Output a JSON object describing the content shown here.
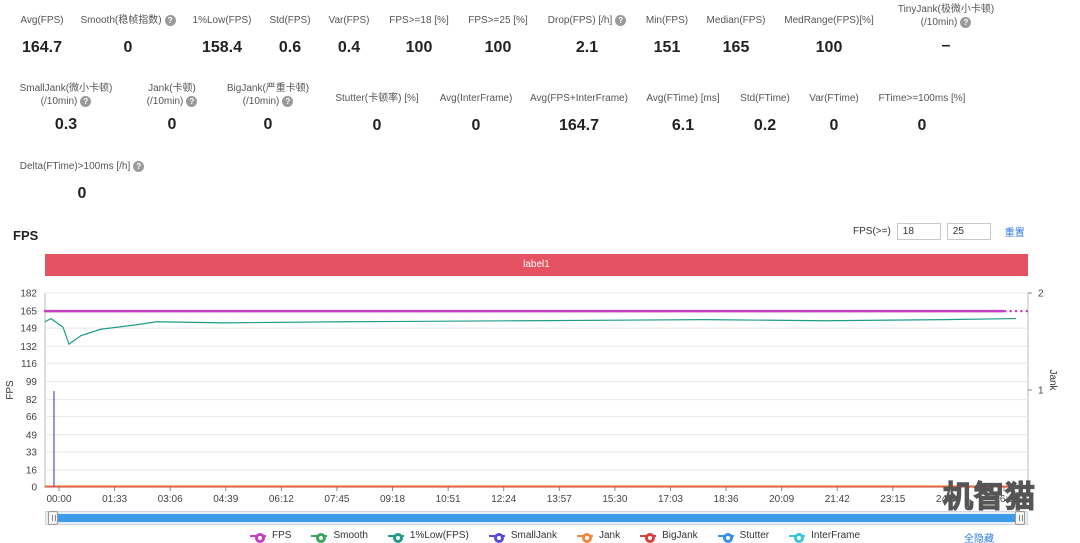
{
  "metrics": [
    {
      "label": "Avg(FPS)",
      "value": "164.7"
    },
    {
      "label": "Smooth(稳帧指数)",
      "value": "0",
      "help": true
    },
    {
      "label": "1%Low(FPS)",
      "value": "158.4"
    },
    {
      "label": "Std(FPS)",
      "value": "0.6"
    },
    {
      "label": "Var(FPS)",
      "value": "0.4"
    },
    {
      "label": "FPS>=18 [%]",
      "value": "100"
    },
    {
      "label": "FPS>=25 [%]",
      "value": "100"
    },
    {
      "label": "Drop(FPS) [/h]",
      "value": "2.1",
      "help": true
    },
    {
      "label": "Min(FPS)",
      "value": "151"
    },
    {
      "label": "Median(FPS)",
      "value": "165"
    },
    {
      "label": "MedRange(FPS)[%]",
      "value": "100"
    },
    {
      "label": "TinyJank(极微小卡顿)",
      "label2": "(/10min)",
      "value": "–",
      "help": true
    },
    {
      "label": "SmallJank(微小卡顿)",
      "label2": "(/10min)",
      "value": "0.3",
      "help": true
    },
    {
      "label": "Jank(卡顿)",
      "label2": "(/10min)",
      "value": "0",
      "help": true
    },
    {
      "label": "BigJank(严重卡顿)",
      "label2": "(/10min)",
      "value": "0",
      "help": true
    },
    {
      "label": "Stutter(卡顿率) [%]",
      "value": "0"
    },
    {
      "label": "Avg(InterFrame)",
      "value": "0"
    },
    {
      "label": "Avg(FPS+InterFrame)",
      "value": "164.7"
    },
    {
      "label": "Avg(FTime) [ms]",
      "value": "6.1"
    },
    {
      "label": "Std(FTime)",
      "value": "0.2"
    },
    {
      "label": "Var(FTime)",
      "value": "0"
    },
    {
      "label": "FTime>=100ms [%]",
      "value": "0"
    },
    {
      "label": "Delta(FTime)>100ms [/h]",
      "value": "0",
      "help": true
    }
  ],
  "help_icon": "?",
  "fps_section": {
    "title": "FPS",
    "filter_label": "FPS(>=)",
    "threshold_1": "18",
    "threshold_2": "25",
    "reset_label": "重置",
    "label_bar": "label1"
  },
  "legend": [
    {
      "name": "FPS",
      "color": "#c23fc0"
    },
    {
      "name": "Smooth",
      "color": "#3aa45c"
    },
    {
      "name": "1%Low(FPS)",
      "color": "#1f9c8a"
    },
    {
      "name": "SmallJank",
      "color": "#5a4ad8"
    },
    {
      "name": "Jank",
      "color": "#f08a3c"
    },
    {
      "name": "BigJank",
      "color": "#d94040"
    },
    {
      "name": "Stutter",
      "color": "#3b8ee0"
    },
    {
      "name": "InterFrame",
      "color": "#3cc6d8"
    }
  ],
  "hide_all_label": "全隐藏",
  "watermark": "机智猫",
  "chart_data": {
    "type": "line",
    "ylabel": "FPS",
    "y2label": "Jank",
    "yticks": [
      0,
      16,
      33,
      49,
      66,
      82,
      99,
      116,
      132,
      149,
      165,
      182
    ],
    "y2ticks": [
      1,
      2
    ],
    "ylim": [
      0,
      182
    ],
    "y2lim": [
      0,
      2
    ],
    "xticks": [
      "00:00",
      "01:33",
      "03:06",
      "04:39",
      "06:12",
      "07:45",
      "09:18",
      "10:51",
      "12:24",
      "13:57",
      "15:30",
      "17:03",
      "18:36",
      "20:09",
      "21:42",
      "23:15",
      "24:48",
      "26:2"
    ],
    "series": [
      {
        "name": "FPS",
        "x_sec": [
          0,
          5,
          30,
          93,
          200,
          300,
          500,
          800,
          1100,
          1400,
          1600
        ],
        "values": [
          165,
          165,
          165,
          165,
          165,
          165,
          165,
          165,
          165,
          165,
          165
        ]
      },
      {
        "name": "1%Low(FPS)",
        "x_sec": [
          0,
          10,
          30,
          40,
          60,
          93,
          150,
          186,
          300,
          500,
          800,
          1100,
          1300,
          1500,
          1620
        ],
        "values": [
          155,
          158,
          150,
          134,
          142,
          148,
          152,
          155,
          154,
          155,
          156,
          157,
          156,
          157,
          158
        ]
      },
      {
        "name": "SmallJank",
        "x_sec": [
          15,
          15
        ],
        "values": [
          0,
          90
        ]
      }
    ]
  }
}
